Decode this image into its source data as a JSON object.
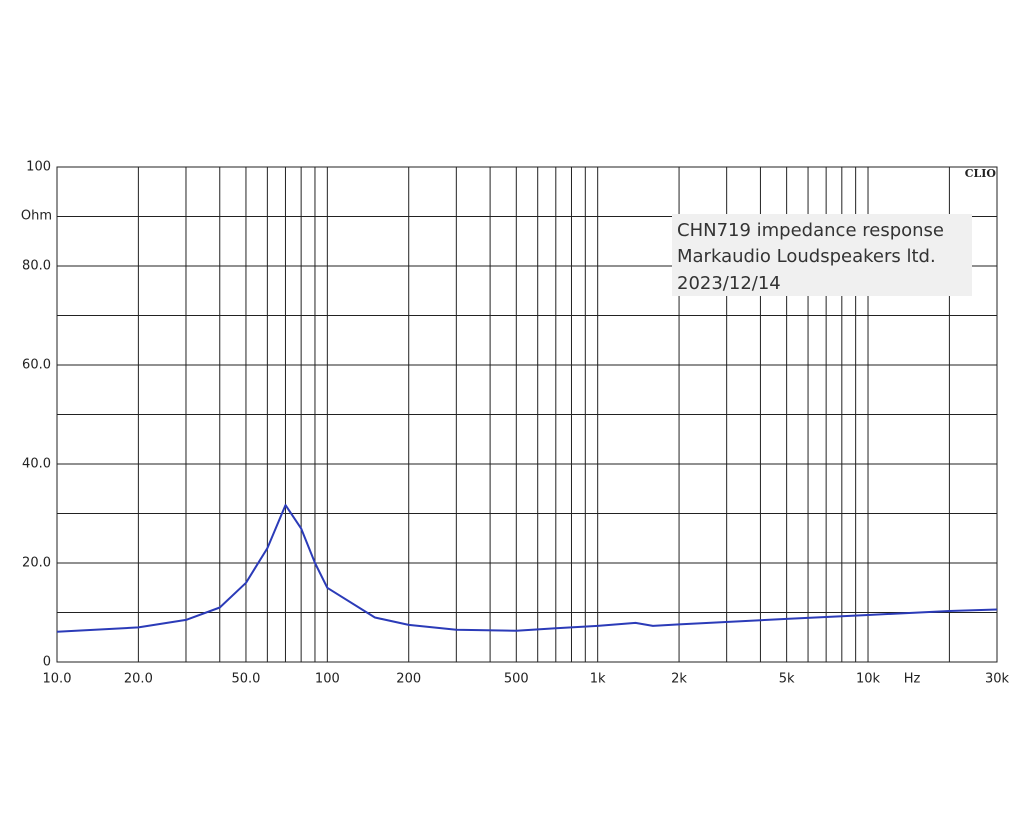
{
  "chart_data": {
    "type": "line",
    "annotations": [
      "CHN719  impedance response",
      "Markaudio Loudspeakers ltd.",
      "2023/12/14"
    ],
    "brand": "CLIO",
    "y_unit": "Ohm",
    "x_unit": "Hz",
    "x": [
      10,
      20,
      30,
      40,
      50,
      60,
      70,
      80,
      90,
      100,
      150,
      200,
      300,
      500,
      700,
      1000,
      1380,
      1600,
      2000,
      5000,
      10000,
      20000,
      30000
    ],
    "values": [
      6.1,
      7,
      8.5,
      11,
      16,
      23,
      31.7,
      27,
      20,
      15,
      9,
      7.5,
      6.5,
      6.3,
      6.8,
      7.3,
      7.9,
      7.3,
      7.6,
      8.7,
      9.5,
      10.3,
      10.6
    ],
    "color": "#2b3bb8",
    "xlog": true,
    "grid": true,
    "xlim": [
      10,
      30000
    ],
    "ylim": [
      0,
      100
    ],
    "xticks": [
      {
        "value": 10,
        "label": "10.0"
      },
      {
        "value": 20,
        "label": "20.0"
      },
      {
        "value": 50,
        "label": "50.0"
      },
      100,
      200,
      500,
      {
        "value": 1000,
        "label": "1k"
      },
      {
        "value": 2000,
        "label": "2k"
      },
      {
        "value": 5000,
        "label": "5k"
      },
      {
        "value": 10000,
        "label": "10k"
      },
      {
        "value": 30000,
        "label": "30k"
      }
    ],
    "x_minor_grid": [
      30,
      40,
      60,
      70,
      80,
      90,
      300,
      400,
      600,
      700,
      800,
      900,
      3000,
      4000,
      6000,
      7000,
      8000,
      9000,
      20000
    ],
    "yticks": [
      0,
      {
        "value": 20,
        "label": "20.0"
      },
      {
        "value": 40,
        "label": "40.0"
      },
      {
        "value": 60,
        "label": "60.0"
      },
      {
        "value": 80,
        "label": "80.0"
      },
      100
    ],
    "y_minor_grid": [
      10,
      30,
      50,
      70,
      90
    ]
  }
}
